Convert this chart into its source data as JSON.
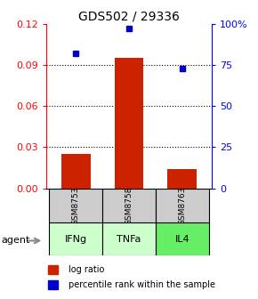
{
  "title": "GDS502 / 29336",
  "samples": [
    "GSM8753",
    "GSM8758",
    "GSM8763"
  ],
  "agents": [
    "IFNg",
    "TNFa",
    "IL4"
  ],
  "log_ratios": [
    0.025,
    0.095,
    0.014
  ],
  "percentile_ranks": [
    82,
    97,
    73
  ],
  "bar_color": "#cc2200",
  "dot_color": "#0000cc",
  "agent_bg_colors": [
    "#ccffcc",
    "#ccffcc",
    "#66ee66"
  ],
  "sample_bg_color": "#cccccc",
  "left_ylim": [
    0,
    0.12
  ],
  "right_ylim": [
    0,
    100
  ],
  "left_yticks": [
    0,
    0.03,
    0.06,
    0.09,
    0.12
  ],
  "right_yticks": [
    0,
    25,
    50,
    75,
    100
  ],
  "right_yticklabels": [
    "0",
    "25",
    "50",
    "75",
    "100%"
  ],
  "grid_values": [
    0.03,
    0.06,
    0.09
  ],
  "legend_bar_label": "log ratio",
  "legend_dot_label": "percentile rank within the sample",
  "agent_label": "agent",
  "title_fontsize": 10,
  "tick_fontsize": 8,
  "bar_width": 0.55,
  "x_positions": [
    0,
    1,
    2
  ]
}
